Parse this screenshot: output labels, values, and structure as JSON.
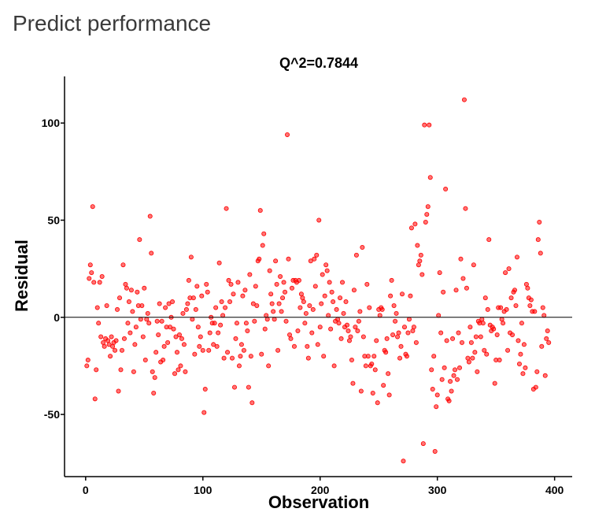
{
  "page": {
    "title": "Predict performance"
  },
  "chart_data": {
    "type": "scatter",
    "title": "Q^2=0.7844",
    "xlabel": "Observation",
    "ylabel": "Residual",
    "xlim": [
      -18,
      415
    ],
    "ylim": [
      -82,
      124
    ],
    "xticks": [
      0,
      100,
      200,
      300,
      400
    ],
    "yticks": [
      -50,
      0,
      50,
      100
    ],
    "grid": false,
    "reference_line_y": 0,
    "point_color": "#ff0000",
    "points": [
      [
        1,
        -25
      ],
      [
        2,
        -22
      ],
      [
        3,
        20
      ],
      [
        4,
        27
      ],
      [
        5,
        23
      ],
      [
        6,
        57
      ],
      [
        7,
        18
      ],
      [
        8,
        -42
      ],
      [
        9,
        -27
      ],
      [
        10,
        5
      ],
      [
        11,
        -3
      ],
      [
        12,
        18
      ],
      [
        13,
        -10
      ],
      [
        14,
        21
      ],
      [
        15,
        -13
      ],
      [
        16,
        -15
      ],
      [
        17,
        -11
      ],
      [
        18,
        6
      ],
      [
        19,
        -12
      ],
      [
        20,
        -14
      ],
      [
        21,
        -20
      ],
      [
        22,
        -10
      ],
      [
        23,
        -15
      ],
      [
        24,
        -13
      ],
      [
        25,
        -17
      ],
      [
        26,
        -12
      ],
      [
        27,
        4
      ],
      [
        28,
        -38
      ],
      [
        29,
        10
      ],
      [
        30,
        -27
      ],
      [
        31,
        -17
      ],
      [
        32,
        27
      ],
      [
        33,
        -11
      ],
      [
        34,
        17
      ],
      [
        35,
        15
      ],
      [
        36,
        -3
      ],
      [
        37,
        8
      ],
      [
        38,
        -8
      ],
      [
        39,
        14
      ],
      [
        40,
        3
      ],
      [
        41,
        -28
      ],
      [
        42,
        -14
      ],
      [
        43,
        -5
      ],
      [
        44,
        13
      ],
      [
        45,
        6
      ],
      [
        46,
        40
      ],
      [
        47,
        -1
      ],
      [
        48,
        6
      ],
      [
        49,
        -10
      ],
      [
        50,
        15
      ],
      [
        51,
        -22
      ],
      [
        52,
        -1
      ],
      [
        53,
        2
      ],
      [
        54,
        -3
      ],
      [
        55,
        52
      ],
      [
        56,
        33
      ],
      [
        57,
        -28
      ],
      [
        58,
        -39
      ],
      [
        59,
        -31
      ],
      [
        60,
        -18
      ],
      [
        61,
        -2
      ],
      [
        62,
        -9
      ],
      [
        63,
        7
      ],
      [
        64,
        -23
      ],
      [
        65,
        -2
      ],
      [
        66,
        -22
      ],
      [
        67,
        -15
      ],
      [
        68,
        5
      ],
      [
        69,
        -5
      ],
      [
        70,
        -13
      ],
      [
        71,
        7
      ],
      [
        72,
        -5
      ],
      [
        73,
        0
      ],
      [
        74,
        8
      ],
      [
        75,
        -6
      ],
      [
        76,
        -29
      ],
      [
        77,
        -10
      ],
      [
        78,
        -18
      ],
      [
        79,
        -27
      ],
      [
        80,
        -9
      ],
      [
        81,
        -25
      ],
      [
        82,
        -11
      ],
      [
        83,
        2
      ],
      [
        84,
        -14
      ],
      [
        85,
        -28
      ],
      [
        86,
        4
      ],
      [
        87,
        7
      ],
      [
        88,
        19
      ],
      [
        89,
        10
      ],
      [
        90,
        31
      ],
      [
        91,
        -1
      ],
      [
        92,
        10
      ],
      [
        93,
        -19
      ],
      [
        94,
        4
      ],
      [
        95,
        16
      ],
      [
        96,
        -5
      ],
      [
        97,
        -15
      ],
      [
        98,
        -10
      ],
      [
        99,
        11
      ],
      [
        100,
        -17
      ],
      [
        101,
        -49
      ],
      [
        102,
        -37
      ],
      [
        103,
        17
      ],
      [
        104,
        13
      ],
      [
        105,
        -17
      ],
      [
        106,
        -8
      ],
      [
        107,
        0
      ],
      [
        108,
        -3
      ],
      [
        109,
        -14
      ],
      [
        110,
        -3
      ],
      [
        111,
        5
      ],
      [
        112,
        -15
      ],
      [
        113,
        -8
      ],
      [
        114,
        28
      ],
      [
        115,
        -4
      ],
      [
        116,
        8
      ],
      [
        117,
        1
      ],
      [
        118,
        -21
      ],
      [
        119,
        5
      ],
      [
        120,
        56
      ],
      [
        121,
        -18
      ],
      [
        122,
        19
      ],
      [
        123,
        8
      ],
      [
        124,
        17
      ],
      [
        125,
        -21
      ],
      [
        126,
        12
      ],
      [
        127,
        -36
      ],
      [
        128,
        -11
      ],
      [
        129,
        -3
      ],
      [
        130,
        18
      ],
      [
        131,
        -25
      ],
      [
        132,
        -20
      ],
      [
        133,
        -14
      ],
      [
        134,
        11
      ],
      [
        135,
        -17
      ],
      [
        136,
        14
      ],
      [
        137,
        -3
      ],
      [
        138,
        -7
      ],
      [
        139,
        -36
      ],
      [
        140,
        22
      ],
      [
        141,
        -20
      ],
      [
        142,
        -44
      ],
      [
        143,
        7
      ],
      [
        144,
        -2
      ],
      [
        145,
        16
      ],
      [
        146,
        6
      ],
      [
        147,
        29
      ],
      [
        148,
        30
      ],
      [
        149,
        55
      ],
      [
        150,
        -19
      ],
      [
        151,
        37
      ],
      [
        152,
        43
      ],
      [
        153,
        -6
      ],
      [
        154,
        1
      ],
      [
        155,
        -1
      ],
      [
        156,
        -25
      ],
      [
        157,
        24
      ],
      [
        158,
        12
      ],
      [
        159,
        7
      ],
      [
        160,
        3
      ],
      [
        161,
        -1
      ],
      [
        162,
        29
      ],
      [
        163,
        17
      ],
      [
        164,
        -17
      ],
      [
        165,
        7
      ],
      [
        166,
        21
      ],
      [
        167,
        3
      ],
      [
        168,
        10
      ],
      [
        169,
        18
      ],
      [
        170,
        13
      ],
      [
        171,
        -2
      ],
      [
        172,
        94
      ],
      [
        173,
        30
      ],
      [
        174,
        -9
      ],
      [
        175,
        -11
      ],
      [
        176,
        15
      ],
      [
        177,
        19
      ],
      [
        178,
        -15
      ],
      [
        179,
        19
      ],
      [
        180,
        18
      ],
      [
        181,
        -7
      ],
      [
        182,
        19
      ],
      [
        183,
        5
      ],
      [
        184,
        12
      ],
      [
        185,
        10
      ],
      [
        186,
        8
      ],
      [
        187,
        -3
      ],
      [
        188,
        2
      ],
      [
        189,
        -15
      ],
      [
        190,
        -21
      ],
      [
        191,
        6
      ],
      [
        192,
        29
      ],
      [
        193,
        -8
      ],
      [
        194,
        4
      ],
      [
        195,
        30
      ],
      [
        196,
        16
      ],
      [
        197,
        32
      ],
      [
        198,
        -14
      ],
      [
        199,
        50
      ],
      [
        200,
        -5
      ],
      [
        201,
        7
      ],
      [
        202,
        22
      ],
      [
        203,
        -20
      ],
      [
        204,
        11
      ],
      [
        205,
        27
      ],
      [
        206,
        24
      ],
      [
        207,
        1
      ],
      [
        208,
        18
      ],
      [
        209,
        -6
      ],
      [
        210,
        13
      ],
      [
        211,
        8
      ],
      [
        212,
        -25
      ],
      [
        213,
        -2
      ],
      [
        214,
        4
      ],
      [
        215,
        -1
      ],
      [
        216,
        -3
      ],
      [
        217,
        10
      ],
      [
        218,
        -11
      ],
      [
        219,
        18
      ],
      [
        220,
        2
      ],
      [
        221,
        -5
      ],
      [
        222,
        8
      ],
      [
        223,
        -4
      ],
      [
        224,
        -7
      ],
      [
        225,
        -12
      ],
      [
        226,
        -10
      ],
      [
        227,
        -22
      ],
      [
        228,
        -34
      ],
      [
        229,
        14
      ],
      [
        230,
        -5
      ],
      [
        231,
        32
      ],
      [
        232,
        -7
      ],
      [
        233,
        -2
      ],
      [
        234,
        3
      ],
      [
        235,
        -38
      ],
      [
        236,
        36
      ],
      [
        237,
        -10
      ],
      [
        238,
        -20
      ],
      [
        239,
        -25
      ],
      [
        240,
        17
      ],
      [
        241,
        -20
      ],
      [
        242,
        5
      ],
      [
        243,
        -25
      ],
      [
        244,
        -24
      ],
      [
        245,
        -39
      ],
      [
        246,
        -20
      ],
      [
        247,
        -27
      ],
      [
        248,
        -12
      ],
      [
        249,
        -44
      ],
      [
        250,
        4
      ],
      [
        251,
        1
      ],
      [
        252,
        5
      ],
      [
        253,
        4
      ],
      [
        254,
        -35
      ],
      [
        255,
        -17
      ],
      [
        256,
        -18
      ],
      [
        257,
        -11
      ],
      [
        258,
        -29
      ],
      [
        259,
        -40
      ],
      [
        260,
        11
      ],
      [
        261,
        19
      ],
      [
        262,
        -9
      ],
      [
        263,
        6
      ],
      [
        264,
        -2
      ],
      [
        265,
        2
      ],
      [
        266,
        -10
      ],
      [
        267,
        -8
      ],
      [
        268,
        -21
      ],
      [
        269,
        -15
      ],
      [
        270,
        12
      ],
      [
        271,
        -74
      ],
      [
        272,
        -5
      ],
      [
        273,
        -19
      ],
      [
        274,
        -20
      ],
      [
        275,
        -8
      ],
      [
        276,
        -1
      ],
      [
        277,
        11
      ],
      [
        278,
        46
      ],
      [
        279,
        -7
      ],
      [
        280,
        -5
      ],
      [
        281,
        48
      ],
      [
        282,
        -13
      ],
      [
        283,
        37
      ],
      [
        284,
        27
      ],
      [
        285,
        29
      ],
      [
        286,
        32
      ],
      [
        287,
        22
      ],
      [
        288,
        -65
      ],
      [
        289,
        99
      ],
      [
        290,
        49
      ],
      [
        291,
        53
      ],
      [
        292,
        57
      ],
      [
        293,
        99
      ],
      [
        294,
        72
      ],
      [
        295,
        -27
      ],
      [
        296,
        -37
      ],
      [
        297,
        -20
      ],
      [
        298,
        -69
      ],
      [
        299,
        -46
      ],
      [
        300,
        -40
      ],
      [
        301,
        1
      ],
      [
        302,
        23
      ],
      [
        303,
        -8
      ],
      [
        304,
        -32
      ],
      [
        305,
        13
      ],
      [
        306,
        -26
      ],
      [
        307,
        66
      ],
      [
        308,
        -12
      ],
      [
        309,
        -42
      ],
      [
        310,
        -43
      ],
      [
        311,
        -33
      ],
      [
        312,
        -38
      ],
      [
        313,
        -11
      ],
      [
        314,
        -30
      ],
      [
        315,
        -27
      ],
      [
        316,
        14
      ],
      [
        317,
        -32
      ],
      [
        318,
        -8
      ],
      [
        319,
        -26
      ],
      [
        320,
        30
      ],
      [
        321,
        -13
      ],
      [
        322,
        20
      ],
      [
        323,
        112
      ],
      [
        324,
        56
      ],
      [
        325,
        15
      ],
      [
        326,
        -21
      ],
      [
        327,
        -23
      ],
      [
        328,
        -5
      ],
      [
        329,
        -13
      ],
      [
        330,
        -21
      ],
      [
        331,
        27
      ],
      [
        332,
        -18
      ],
      [
        333,
        -10
      ],
      [
        334,
        -28
      ],
      [
        335,
        -2
      ],
      [
        336,
        -3
      ],
      [
        337,
        -10
      ],
      [
        338,
        -1
      ],
      [
        339,
        -3
      ],
      [
        340,
        -17
      ],
      [
        341,
        10
      ],
      [
        342,
        -19
      ],
      [
        343,
        4
      ],
      [
        344,
        40
      ],
      [
        345,
        -4
      ],
      [
        346,
        -7
      ],
      [
        347,
        -5
      ],
      [
        348,
        -6
      ],
      [
        349,
        -34
      ],
      [
        350,
        -22
      ],
      [
        351,
        -9
      ],
      [
        352,
        5
      ],
      [
        353,
        -22
      ],
      [
        354,
        5
      ],
      [
        355,
        -1
      ],
      [
        356,
        -3
      ],
      [
        357,
        3
      ],
      [
        358,
        23
      ],
      [
        359,
        4
      ],
      [
        360,
        -17
      ],
      [
        361,
        25
      ],
      [
        362,
        -8
      ],
      [
        363,
        10
      ],
      [
        364,
        -9
      ],
      [
        365,
        13
      ],
      [
        366,
        14
      ],
      [
        367,
        6
      ],
      [
        368,
        31
      ],
      [
        369,
        -12
      ],
      [
        370,
        -24
      ],
      [
        371,
        -19
      ],
      [
        372,
        -3
      ],
      [
        373,
        -29
      ],
      [
        374,
        -14
      ],
      [
        375,
        -26
      ],
      [
        376,
        17
      ],
      [
        377,
        15
      ],
      [
        378,
        10
      ],
      [
        379,
        6
      ],
      [
        380,
        9
      ],
      [
        381,
        3
      ],
      [
        382,
        -37
      ],
      [
        383,
        3
      ],
      [
        384,
        -36
      ],
      [
        385,
        -28
      ],
      [
        386,
        40
      ],
      [
        387,
        49
      ],
      [
        388,
        33
      ],
      [
        389,
        -15
      ],
      [
        390,
        5
      ],
      [
        391,
        1
      ],
      [
        392,
        -30
      ],
      [
        393,
        -11
      ],
      [
        394,
        -7
      ],
      [
        395,
        -13
      ]
    ]
  }
}
